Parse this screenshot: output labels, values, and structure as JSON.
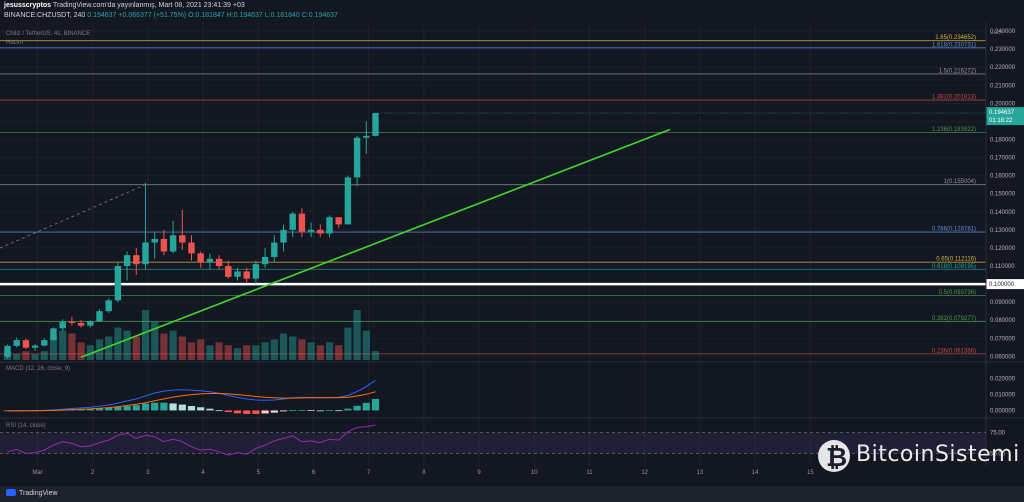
{
  "header": {
    "line1_user": "jesusscryptos",
    "line1_rest": "TradingView.com'da yayınlanmış, Mart 08, 2021 23:41:39 +03",
    "symbol": "BINANCE:CHZUSDT, 240",
    "last": "0.194637",
    "change": "+0.066377 (+51.75%)",
    "ohlc": "O:0.181847 H:0.194637 L:0.181840 C:0.194637"
  },
  "pane_labels": {
    "main": "Chiliz / TetherUS, 4s, BINANCE",
    "volume": "Hacim",
    "macd": "MACD (12, 26, close, 9)",
    "rsi": "RSI (14, close)"
  },
  "axis": {
    "currency": "USDT",
    "price_ticks": [
      "0.240000",
      "0.230000",
      "0.220000",
      "0.210000",
      "0.200000",
      "0.190000",
      "0.180000",
      "0.170000",
      "0.160000",
      "0.150000",
      "0.140000",
      "0.130000",
      "0.120000",
      "0.110000",
      "0.100000",
      "0.090000",
      "0.080000",
      "0.070000",
      "0.060000"
    ],
    "macd_ticks": [
      "0.020000",
      "0.010000",
      "0.000000"
    ],
    "rsi_ticks": [
      "75.00",
      "50.00"
    ],
    "date_ticks": [
      "Mar",
      "2",
      "3",
      "4",
      "5",
      "6",
      "7",
      "8",
      "9",
      "10",
      "11",
      "12",
      "13",
      "14",
      "15"
    ],
    "price_badge": "0.194637",
    "price_timer": "01:18:22",
    "white_badge": "0.100000"
  },
  "fib_levels": [
    {
      "label": "1.65(0.234652)",
      "price": 0.234652,
      "color": "#d4b440"
    },
    {
      "label": "1.618(0.230731)",
      "price": 0.230731,
      "color": "#5b8fd6"
    },
    {
      "label": "1.5(0.216272)",
      "price": 0.216272,
      "color": "#8a8f9c"
    },
    {
      "label": "1.382(0.201813)",
      "price": 0.201813,
      "color": "#c44848"
    },
    {
      "label": "1.236(0.183922)",
      "price": 0.183922,
      "color": "#4a9a4a"
    },
    {
      "label": "1(0.155004)",
      "price": 0.155004,
      "color": "#8a8f9c"
    },
    {
      "label": "0.786(0.128781)",
      "price": 0.128781,
      "color": "#5b8fd6"
    },
    {
      "label": "0.65(0.112116)",
      "price": 0.112116,
      "color": "#d4b440"
    },
    {
      "label": "0.618(0.108195)",
      "price": 0.108195,
      "color": "#26a69a"
    },
    {
      "label": "0.5(0.093736)",
      "price": 0.093736,
      "color": "#4a9a4a"
    },
    {
      "label": "0.382(0.079277)",
      "price": 0.079277,
      "color": "#4a9a4a"
    },
    {
      "label": "0.236(0.061386)",
      "price": 0.061386,
      "color": "#c44848"
    }
  ],
  "chart_data": {
    "type": "candlestick",
    "title": "Chiliz / TetherUS, 4s, BINANCE",
    "x_unit": "4h candle index (6 per day, starting Mar 1)",
    "ylim": [
      0.058,
      0.245
    ],
    "candles": [
      [
        0.0598,
        0.0665,
        0.059,
        0.0658
      ],
      [
        0.0658,
        0.0705,
        0.065,
        0.069
      ],
      [
        0.069,
        0.0698,
        0.064,
        0.0648
      ],
      [
        0.0648,
        0.0668,
        0.063,
        0.066
      ],
      [
        0.066,
        0.07,
        0.0655,
        0.069
      ],
      [
        0.069,
        0.076,
        0.0685,
        0.0755
      ],
      [
        0.0755,
        0.0805,
        0.074,
        0.0792
      ],
      [
        0.0792,
        0.082,
        0.077,
        0.0785
      ],
      [
        0.0785,
        0.08,
        0.076,
        0.077
      ],
      [
        0.077,
        0.08,
        0.076,
        0.0795
      ],
      [
        0.0795,
        0.086,
        0.079,
        0.085
      ],
      [
        0.085,
        0.092,
        0.084,
        0.091
      ],
      [
        0.091,
        0.112,
        0.09,
        0.11
      ],
      [
        0.11,
        0.118,
        0.102,
        0.116
      ],
      [
        0.116,
        0.12,
        0.105,
        0.111
      ],
      [
        0.111,
        0.156,
        0.108,
        0.123
      ],
      [
        0.123,
        0.129,
        0.114,
        0.125
      ],
      [
        0.125,
        0.13,
        0.116,
        0.118
      ],
      [
        0.118,
        0.135,
        0.117,
        0.127
      ],
      [
        0.127,
        0.141,
        0.119,
        0.123
      ],
      [
        0.123,
        0.127,
        0.113,
        0.117
      ],
      [
        0.117,
        0.118,
        0.109,
        0.112
      ],
      [
        0.112,
        0.117,
        0.108,
        0.114
      ],
      [
        0.114,
        0.116,
        0.108,
        0.11
      ],
      [
        0.11,
        0.113,
        0.103,
        0.104
      ],
      [
        0.104,
        0.109,
        0.102,
        0.107
      ],
      [
        0.107,
        0.109,
        0.101,
        0.103
      ],
      [
        0.103,
        0.113,
        0.1,
        0.111
      ],
      [
        0.111,
        0.12,
        0.109,
        0.115
      ],
      [
        0.115,
        0.127,
        0.112,
        0.123
      ],
      [
        0.123,
        0.133,
        0.118,
        0.13
      ],
      [
        0.13,
        0.14,
        0.126,
        0.139
      ],
      [
        0.139,
        0.142,
        0.126,
        0.129
      ],
      [
        0.129,
        0.134,
        0.126,
        0.13
      ],
      [
        0.13,
        0.133,
        0.126,
        0.128
      ],
      [
        0.128,
        0.138,
        0.126,
        0.137
      ],
      [
        0.137,
        0.136,
        0.131,
        0.133
      ],
      [
        0.133,
        0.16,
        0.133,
        0.159
      ],
      [
        0.159,
        0.182,
        0.154,
        0.181
      ],
      [
        0.181,
        0.19,
        0.172,
        0.182
      ],
      [
        0.182,
        0.1946,
        0.1818,
        0.1946
      ]
    ],
    "volume": [
      3,
      2,
      3,
      2,
      3,
      8,
      10,
      9,
      6,
      5,
      7,
      8,
      11,
      10,
      8,
      17,
      13,
      9,
      10,
      8,
      6,
      7,
      5,
      6,
      5,
      4,
      5,
      5,
      6,
      7,
      9,
      8,
      7,
      6,
      5,
      6,
      5,
      11,
      17,
      10,
      3
    ],
    "macd": {
      "macd_line": [
        -0.0004,
        -0.0003,
        -0.0002,
        -0.0001,
        0.0,
        0.0003,
        0.0008,
        0.0012,
        0.0016,
        0.002,
        0.0026,
        0.0034,
        0.0046,
        0.006,
        0.0072,
        0.0092,
        0.011,
        0.0122,
        0.0128,
        0.013,
        0.0128,
        0.0124,
        0.0118,
        0.0108,
        0.0094,
        0.0082,
        0.0072,
        0.0066,
        0.0064,
        0.0066,
        0.0072,
        0.008,
        0.0082,
        0.0082,
        0.008,
        0.0082,
        0.0082,
        0.0094,
        0.012,
        0.015,
        0.019
      ],
      "signal_line": [
        -0.0002,
        -0.0002,
        -0.0002,
        -0.0002,
        -0.0001,
        0.0,
        0.0002,
        0.0004,
        0.0007,
        0.001,
        0.0014,
        0.0018,
        0.0024,
        0.0031,
        0.0039,
        0.0049,
        0.0061,
        0.0073,
        0.0084,
        0.0093,
        0.01,
        0.0104,
        0.0107,
        0.0107,
        0.0104,
        0.01,
        0.0094,
        0.0088,
        0.0083,
        0.008,
        0.0078,
        0.0078,
        0.0079,
        0.008,
        0.008,
        0.008,
        0.0081,
        0.0083,
        0.0091,
        0.0102,
        0.0118
      ],
      "histogram": [
        -0.0002,
        -0.0001,
        0.0,
        0.0001,
        0.0001,
        0.0003,
        0.0006,
        0.0008,
        0.0009,
        0.001,
        0.0012,
        0.0016,
        0.0022,
        0.0029,
        0.0033,
        0.0043,
        0.0049,
        0.0049,
        0.0044,
        0.0037,
        0.0028,
        0.002,
        0.0011,
        0.0001,
        -0.001,
        -0.0018,
        -0.0022,
        -0.0022,
        -0.0019,
        -0.0014,
        -0.0006,
        0.0002,
        0.0003,
        0.0002,
        0.0,
        0.0002,
        0.0001,
        0.0011,
        0.0029,
        0.0048,
        0.0072
      ],
      "ylim": [
        -0.0035,
        0.028
      ]
    },
    "rsi": {
      "values": [
        52,
        55,
        50,
        51,
        54,
        60,
        64,
        62,
        58,
        59,
        63,
        66,
        72,
        74,
        68,
        72,
        70,
        64,
        67,
        64,
        58,
        54,
        55,
        52,
        48,
        51,
        49,
        56,
        60,
        65,
        68,
        71,
        64,
        65,
        63,
        67,
        66,
        76,
        81,
        82,
        84
      ],
      "ylim": [
        35,
        90
      ],
      "band": [
        50,
        75
      ]
    },
    "trendline": {
      "from": [
        8,
        0.0595
      ],
      "to": [
        72,
        0.1855
      ],
      "color": "#3fd62c"
    },
    "dashed_line": {
      "from": [
        -8,
        0.104
      ],
      "to": [
        15,
        0.155
      ]
    },
    "horizontal_line": {
      "price": 0.1,
      "color": "#ffffff"
    }
  },
  "watermark": {
    "brand": "BitcoinSistemi",
    "logo_glyph": "₿"
  },
  "footer": {
    "logo_text": "TradingView"
  }
}
